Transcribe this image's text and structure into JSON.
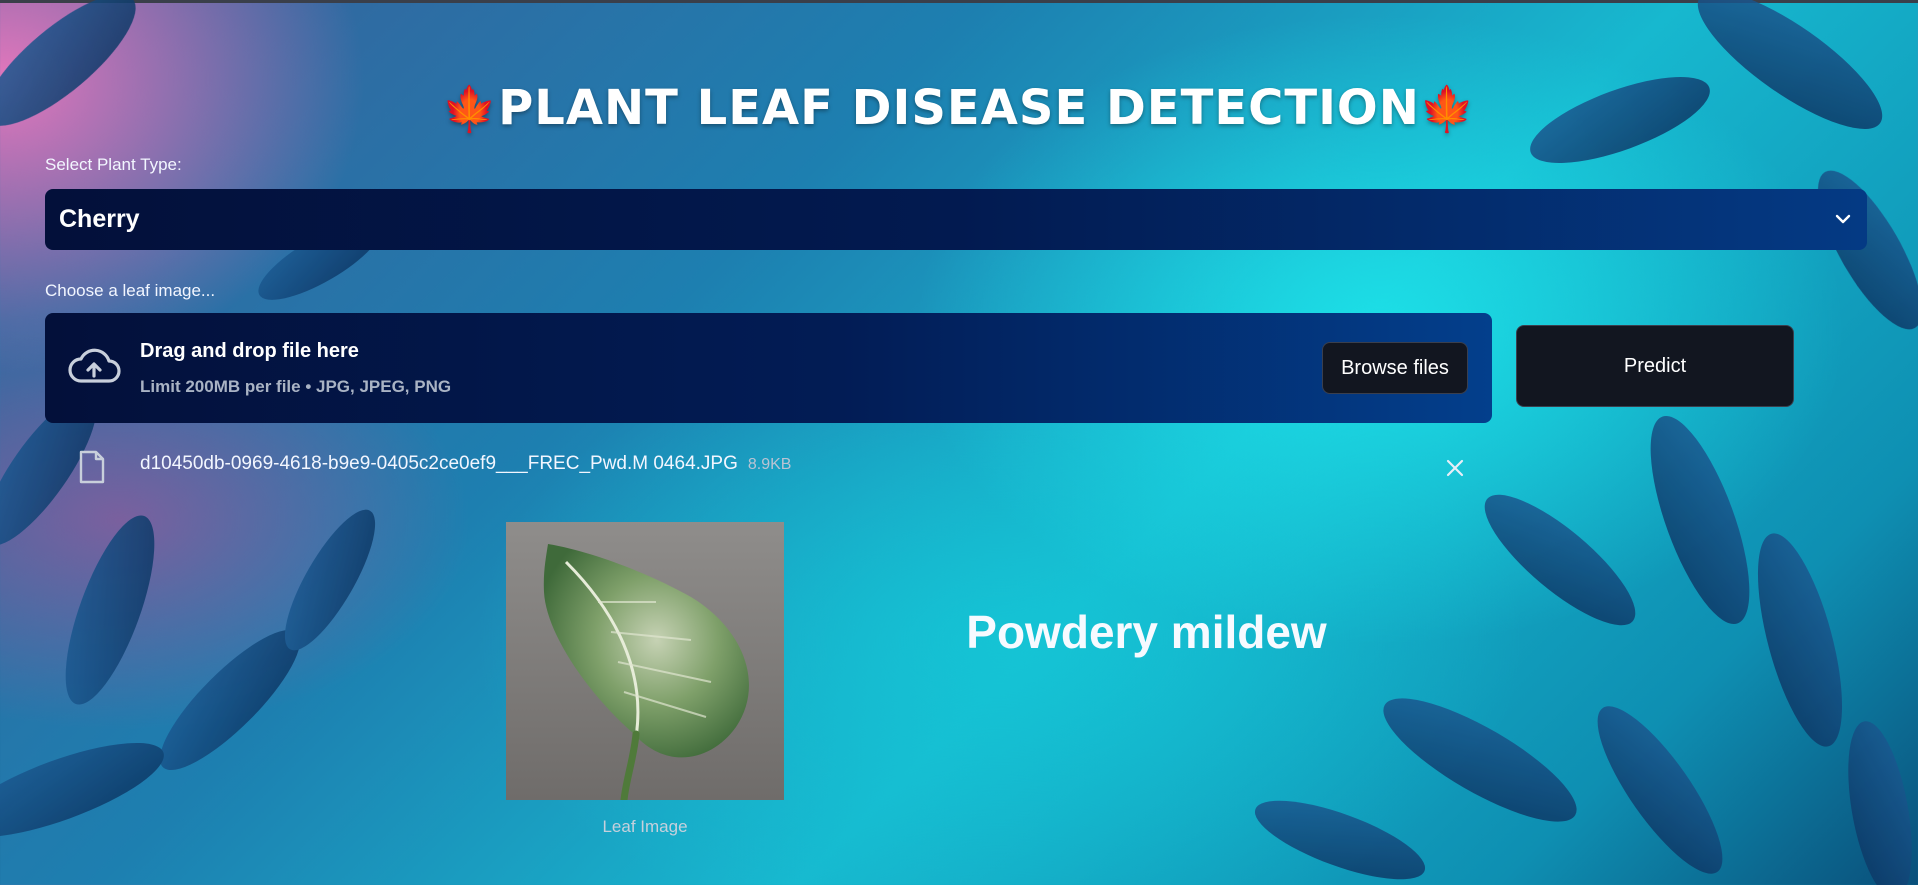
{
  "app": {
    "title": "PLANT LEAF DISEASE DETECTION",
    "title_icon": "maple-leaf-icon"
  },
  "plant_select": {
    "label": "Select Plant Type:",
    "value": "Cherry"
  },
  "uploader": {
    "label": "Choose a leaf image...",
    "drag_text": "Drag and drop file here",
    "limit_text": "Limit 200MB per file • JPG, JPEG, PNG",
    "browse_label": "Browse files"
  },
  "predict_label": "Predict",
  "uploaded_file": {
    "name": "d10450db-0969-4618-b9e9-0405c2ce0ef9___FREC_Pwd.M 0464.JPG",
    "size": "8.9KB"
  },
  "image": {
    "caption": "Leaf Image"
  },
  "result": {
    "text": "Powdery mildew"
  },
  "colors": {
    "select_bg": "#021a50",
    "button_bg": "#121620",
    "maple": "#e0202a"
  }
}
